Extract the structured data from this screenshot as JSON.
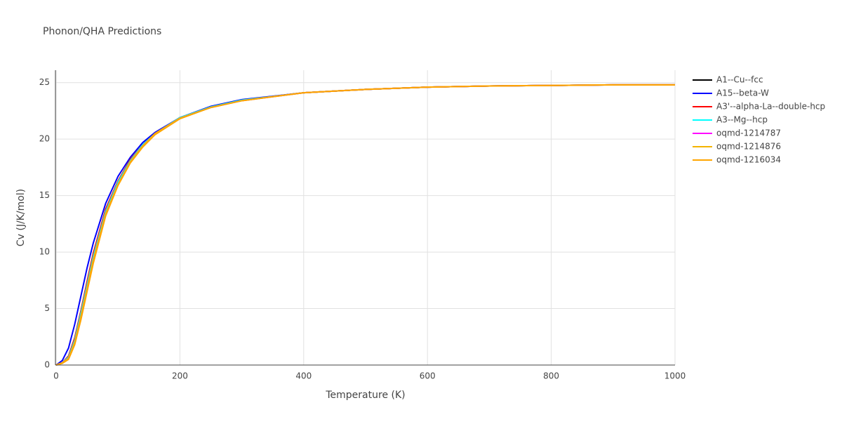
{
  "chart_data": {
    "type": "line",
    "title": "Phonon/QHA Predictions",
    "x_label": "Temperature (K)",
    "y_label": "Cv (J/K/mol)",
    "x": [
      0,
      10,
      20,
      30,
      40,
      50,
      60,
      80,
      100,
      120,
      140,
      160,
      200,
      250,
      300,
      400,
      500,
      600,
      700,
      800,
      900,
      1000
    ],
    "series": [
      {
        "name": "A1--Cu--fcc",
        "color": "#000000",
        "values": [
          0,
          0.2,
          0.7,
          2.2,
          4.6,
          7.1,
          9.6,
          13.6,
          16.2,
          18.1,
          19.5,
          20.5,
          21.9,
          22.85,
          23.45,
          24.1,
          24.4,
          24.6,
          24.7,
          24.75,
          24.8,
          24.8
        ]
      },
      {
        "name": "A15--beta-W",
        "color": "#0000ff",
        "values": [
          0,
          0.4,
          1.5,
          3.6,
          6.1,
          8.6,
          10.8,
          14.3,
          16.7,
          18.4,
          19.7,
          20.6,
          21.9,
          22.9,
          23.5,
          24.1,
          24.4,
          24.6,
          24.7,
          24.75,
          24.8,
          24.8
        ]
      },
      {
        "name": "A3'--alpha-La--double-hcp",
        "color": "#ff0000",
        "values": [
          0,
          0.2,
          0.8,
          2.4,
          4.8,
          7.4,
          9.9,
          13.8,
          16.3,
          18.2,
          19.5,
          20.5,
          21.9,
          22.85,
          23.45,
          24.1,
          24.4,
          24.6,
          24.7,
          24.75,
          24.8,
          24.8
        ]
      },
      {
        "name": "A3--Mg--hcp",
        "color": "#00ffff",
        "values": [
          0,
          0.2,
          0.7,
          2.2,
          4.6,
          7.1,
          9.6,
          13.6,
          16.2,
          18.1,
          19.5,
          20.5,
          21.9,
          22.85,
          23.45,
          24.1,
          24.4,
          24.6,
          24.7,
          24.75,
          24.8,
          24.8
        ]
      },
      {
        "name": "oqmd-1214787",
        "color": "#ff00ff",
        "values": [
          0,
          0.2,
          0.6,
          2.0,
          4.3,
          6.8,
          9.3,
          13.4,
          16.0,
          18.0,
          19.4,
          20.5,
          21.85,
          22.8,
          23.4,
          24.1,
          24.4,
          24.6,
          24.7,
          24.75,
          24.8,
          24.8
        ]
      },
      {
        "name": "oqmd-1214876",
        "color": "#f4b400",
        "values": [
          0,
          0.2,
          0.6,
          2.0,
          4.3,
          6.8,
          9.3,
          13.4,
          16.0,
          18.0,
          19.4,
          20.5,
          21.85,
          22.8,
          23.4,
          24.1,
          24.4,
          24.6,
          24.7,
          24.75,
          24.8,
          24.8
        ]
      },
      {
        "name": "oqmd-1216034",
        "color": "#ffa500",
        "values": [
          0,
          0.15,
          0.5,
          1.8,
          4.0,
          6.5,
          9.0,
          13.2,
          15.9,
          17.9,
          19.3,
          20.4,
          21.8,
          22.8,
          23.4,
          24.1,
          24.4,
          24.6,
          24.7,
          24.75,
          24.8,
          24.8
        ]
      }
    ],
    "xlim": [
      0,
      1000
    ],
    "ylim": [
      0,
      26.1
    ],
    "xticks": [
      0,
      200,
      400,
      600,
      800,
      1000
    ],
    "yticks": [
      0,
      5,
      10,
      15,
      20,
      25
    ],
    "grid": true
  }
}
